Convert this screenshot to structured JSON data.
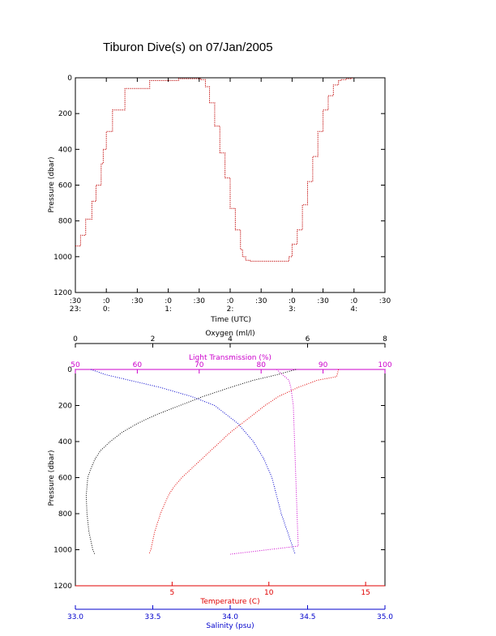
{
  "title": "Tiburon Dive(s) on 07/Jan/2005",
  "colors": {
    "frame": "#000000",
    "pressure_trace": "#c00000",
    "oxygen": "#000000",
    "light_transmission": "#cc00cc",
    "temperature": "#e00000",
    "salinity": "#0000cc"
  },
  "chart_data": [
    {
      "type": "line",
      "style": "dotted step trace",
      "title": "Tiburon Dive(s) on 07/Jan/2005",
      "xlabel": "Time (UTC)",
      "ylabel": "Pressure (dbar)",
      "y_inverted": true,
      "ylim": [
        1200,
        0
      ],
      "xlim_minutes_after_23_30": [
        0,
        300
      ],
      "yticks": [
        "0",
        "200",
        "400",
        "600",
        "800",
        "1000",
        "1200"
      ],
      "xticks_minute": [
        ":30",
        ":0",
        ":30",
        ":0",
        ":30",
        ":0",
        ":30",
        ":0",
        ":30",
        ":0",
        ":30"
      ],
      "xticks_hour": [
        "23:",
        "0:",
        "",
        "1:",
        "",
        "2:",
        "",
        "3:",
        "",
        "4:",
        ""
      ],
      "series": [
        {
          "x_minutes": [
            0,
            5,
            10,
            16,
            20,
            25,
            27,
            30,
            36,
            48,
            72,
            100,
            120,
            122,
            126,
            130,
            135,
            140,
            145,
            150,
            155,
            160,
            162,
            165,
            169,
            175,
            180,
            196,
            205,
            207,
            210,
            215,
            220,
            225,
            230,
            235,
            240,
            245,
            250,
            255,
            257,
            262,
            268
          ],
          "pressure": [
            940,
            880,
            790,
            690,
            600,
            480,
            400,
            300,
            180,
            60,
            15,
            5,
            5,
            10,
            50,
            140,
            270,
            420,
            560,
            730,
            850,
            960,
            1000,
            1020,
            1025,
            1025,
            1025,
            1025,
            1025,
            1000,
            930,
            850,
            710,
            580,
            440,
            300,
            180,
            100,
            40,
            15,
            10,
            5,
            0
          ]
        }
      ]
    },
    {
      "type": "scatter",
      "style": "dotted profiles",
      "ylabel": "Pressure (dbar)",
      "y_inverted": true,
      "ylim": [
        1200,
        0
      ],
      "yticks": [
        "0",
        "200",
        "400",
        "600",
        "800",
        "1000",
        "1200"
      ],
      "axes": {
        "oxygen": {
          "label": "Oxygen (ml/l)",
          "range": [
            0,
            8
          ],
          "ticks": [
            "0",
            "2",
            "4",
            "6",
            "8"
          ],
          "position": "top"
        },
        "light_transmission": {
          "label": "Light Transmission (%)",
          "range": [
            50,
            100
          ],
          "ticks": [
            "50",
            "60",
            "70",
            "80",
            "90",
            "100"
          ],
          "position": "top"
        },
        "temperature": {
          "label": "Temperature (C)",
          "range": [
            0,
            16
          ],
          "ticks": [
            "5",
            "10",
            "15"
          ],
          "position": "bottom"
        },
        "salinity": {
          "label": "Salinity (psu)",
          "range": [
            33.0,
            35.0
          ],
          "ticks": [
            "33.0",
            "33.5",
            "34.0",
            "34.5",
            "35.0"
          ],
          "position": "bottom"
        }
      },
      "series": [
        {
          "name": "Oxygen",
          "axis": "oxygen",
          "pressure": [
            0,
            30,
            60,
            100,
            150,
            200,
            250,
            300,
            350,
            400,
            450,
            500,
            550,
            600,
            700,
            800,
            900,
            1000,
            1025
          ],
          "values": [
            5.7,
            5.2,
            4.6,
            4.0,
            3.3,
            2.7,
            2.1,
            1.6,
            1.2,
            0.9,
            0.65,
            0.5,
            0.4,
            0.32,
            0.28,
            0.3,
            0.35,
            0.45,
            0.5
          ]
        },
        {
          "name": "Light Transmission",
          "axis": "light_transmission",
          "pressure": [
            0,
            30,
            60,
            100,
            150,
            200,
            300,
            400,
            500,
            600,
            700,
            800,
            900,
            980,
            1025
          ],
          "values": [
            82.5,
            83.5,
            84.5,
            84.8,
            85.0,
            85.2,
            85.3,
            85.4,
            85.5,
            85.6,
            85.7,
            85.8,
            85.9,
            86.0,
            75.0
          ]
        },
        {
          "name": "Temperature",
          "axis": "temperature",
          "pressure": [
            0,
            40,
            60,
            100,
            150,
            200,
            250,
            300,
            350,
            400,
            450,
            500,
            550,
            600,
            650,
            700,
            800,
            900,
            1000,
            1025
          ],
          "values": [
            13.6,
            13.5,
            12.5,
            11.5,
            10.5,
            9.8,
            9.2,
            8.6,
            8.0,
            7.5,
            7.0,
            6.5,
            6.0,
            5.5,
            5.1,
            4.8,
            4.4,
            4.1,
            3.9,
            3.8
          ]
        },
        {
          "name": "Salinity",
          "axis": "salinity",
          "pressure": [
            0,
            30,
            60,
            100,
            150,
            200,
            300,
            400,
            500,
            600,
            700,
            800,
            900,
            1000,
            1025
          ],
          "values": [
            33.1,
            33.2,
            33.35,
            33.55,
            33.75,
            33.9,
            34.05,
            34.15,
            34.22,
            34.27,
            34.3,
            34.33,
            34.37,
            34.41,
            34.42
          ]
        }
      ]
    }
  ]
}
